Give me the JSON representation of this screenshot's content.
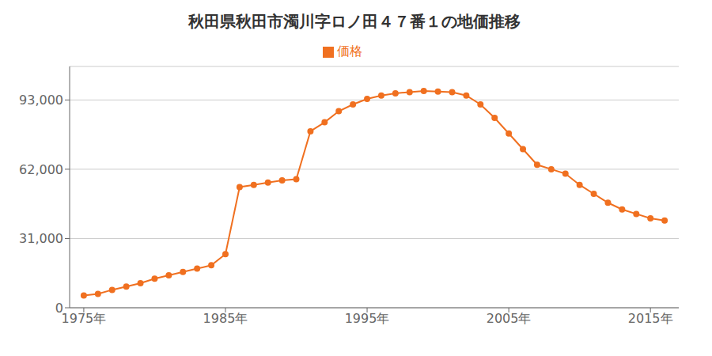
{
  "chart_data": {
    "type": "line",
    "title": "秋田県秋田市濁川字ロノ田４７番１の地価推移",
    "x": [
      1975,
      1976,
      1977,
      1978,
      1979,
      1980,
      1981,
      1982,
      1983,
      1984,
      1985,
      1986,
      1987,
      1988,
      1989,
      1990,
      1991,
      1992,
      1993,
      1994,
      1995,
      1996,
      1997,
      1998,
      1999,
      2000,
      2001,
      2002,
      2003,
      2004,
      2005,
      2006,
      2007,
      2008,
      2009,
      2010,
      2011,
      2012,
      2013,
      2014,
      2015,
      2016
    ],
    "series": [
      {
        "name": "価格",
        "color": "#f07020",
        "marker": "circle",
        "values": [
          5500,
          6200,
          8000,
          9500,
          11000,
          13000,
          14500,
          16000,
          17500,
          19000,
          24000,
          54000,
          55000,
          56000,
          57000,
          57500,
          79000,
          83000,
          88000,
          91000,
          93500,
          95000,
          96000,
          96500,
          97000,
          96800,
          96500,
          95000,
          91000,
          85000,
          78000,
          71000,
          64000,
          62000,
          60000,
          55000,
          51000,
          47000,
          44000,
          42000,
          40000,
          39000
        ]
      }
    ],
    "xlim": [
      1974,
      2017
    ],
    "xticks": [
      {
        "value": 1975,
        "label": "1975年"
      },
      {
        "value": 1985,
        "label": "1985年"
      },
      {
        "value": 1995,
        "label": "1995年"
      },
      {
        "value": 2005,
        "label": "2005年"
      },
      {
        "value": 2015,
        "label": "2015年"
      }
    ],
    "ylim": [
      0,
      108000
    ],
    "yticks": [
      0,
      {
        "value": 31000,
        "label": "31,000"
      },
      {
        "value": 62000,
        "label": "62,000"
      },
      {
        "value": 93000,
        "label": "93,000"
      }
    ],
    "grid": true,
    "legend": "top"
  }
}
